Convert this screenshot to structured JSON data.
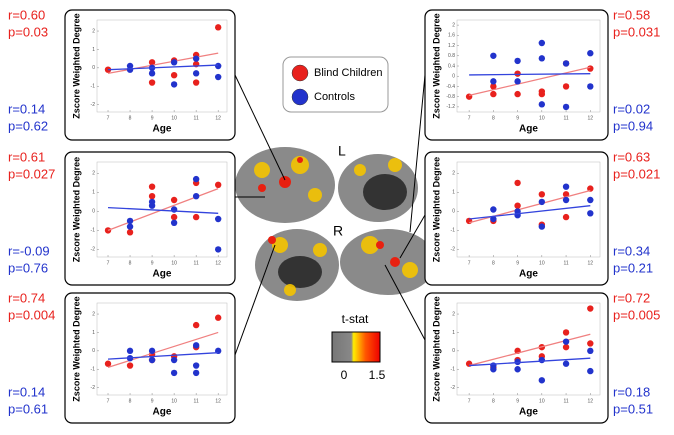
{
  "legend": [
    {
      "name": "Blind Children",
      "color": "#e8211d"
    },
    {
      "name": "Controls",
      "color": "#2233cc"
    }
  ],
  "brain_labels": [
    "L",
    "R"
  ],
  "colorbar": {
    "label": "t-stat",
    "min": 0,
    "max": 1.5
  },
  "chart_data": [
    {
      "type": "scatter",
      "ylabel": "Zscore Weighted Degree",
      "xlabel": "Age",
      "xlim": [
        6.5,
        12.4
      ],
      "xticks": [
        7,
        8,
        9,
        10,
        11,
        12
      ],
      "ylim": [
        -2.4,
        2.6
      ],
      "yticks": [
        -2,
        -1,
        0,
        1,
        2
      ],
      "x_fit": [
        7,
        12
      ],
      "series": [
        {
          "x": [
            7,
            9,
            9,
            10,
            10,
            11,
            11,
            11,
            12
          ],
          "values": [
            -0.1,
            0.3,
            -0.8,
            -0.4,
            0.4,
            0.7,
            0.2,
            -0.8,
            2.2
          ],
          "fit": [
            -0.3,
            0.8
          ],
          "r": "r=0.60",
          "p": "p=0.03"
        },
        {
          "x": [
            8,
            8,
            9,
            9,
            10,
            10,
            11,
            11,
            12,
            12
          ],
          "values": [
            0.1,
            -0.1,
            -0.3,
            0,
            0.3,
            -0.9,
            0.5,
            -0.3,
            0.1,
            -0.5
          ],
          "fit": [
            -0.1,
            0.15
          ],
          "r": "r=0.14",
          "p": "p=0.62"
        }
      ]
    },
    {
      "type": "scatter",
      "ylabel": "Zscore Weighted Degree",
      "xlabel": "Age",
      "xlim": [
        6.5,
        12.4
      ],
      "xticks": [
        7,
        8,
        9,
        10,
        11,
        12
      ],
      "ylim": [
        -2.4,
        2.6
      ],
      "yticks": [
        -2,
        -1,
        0,
        1,
        2
      ],
      "x_fit": [
        7,
        12
      ],
      "series": [
        {
          "x": [
            7,
            8,
            9,
            9,
            10,
            10,
            11,
            11,
            12
          ],
          "values": [
            -1,
            -1.1,
            1.3,
            0.8,
            -0.3,
            0.6,
            1.5,
            -0.3,
            1.4
          ],
          "fit": [
            -1.0,
            1.2
          ],
          "r": "r=0.61",
          "p": "p=0.027"
        },
        {
          "x": [
            8,
            8,
            9,
            9,
            10,
            10,
            11,
            11,
            12,
            12
          ],
          "values": [
            -0.5,
            -0.8,
            0.3,
            0.5,
            -0.6,
            0.1,
            1.7,
            0.8,
            -0.4,
            -2
          ],
          "fit": [
            0.2,
            -0.1
          ],
          "r": "r=-0.09",
          "p": "p=0.76"
        }
      ]
    },
    {
      "type": "scatter",
      "ylabel": "Zscore Weighted Degree",
      "xlabel": "Age",
      "xlim": [
        6.5,
        12.4
      ],
      "xticks": [
        7,
        8,
        9,
        10,
        11,
        12
      ],
      "ylim": [
        -2.4,
        2.6
      ],
      "yticks": [
        -2,
        -1,
        0,
        1,
        2
      ],
      "x_fit": [
        7,
        12
      ],
      "series": [
        {
          "x": [
            7,
            8,
            9,
            9,
            10,
            11,
            11,
            12
          ],
          "values": [
            -0.7,
            -0.8,
            -0.2,
            -0.5,
            -0.3,
            1.4,
            0.2,
            1.8
          ],
          "fit": [
            -0.9,
            1.0
          ],
          "r": "r=0.74",
          "p": "p=0.004"
        },
        {
          "x": [
            8,
            8,
            9,
            9,
            10,
            10,
            11,
            11,
            11,
            12
          ],
          "values": [
            0,
            -0.4,
            -0.5,
            0,
            -0.5,
            -1.2,
            0.3,
            -0.8,
            -1.2,
            0
          ],
          "fit": [
            -0.45,
            -0.1
          ],
          "r": "r=0.14",
          "p": "p=0.61"
        }
      ]
    },
    {
      "type": "scatter",
      "ylabel": "Zscore Weighted Degree",
      "xlabel": "Age",
      "xlim": [
        6.5,
        12.4
      ],
      "xticks": [
        7,
        8,
        9,
        10,
        11,
        12
      ],
      "ylim": [
        -1.4,
        2.2
      ],
      "yticks": [
        -1.2,
        -0.8,
        -0.4,
        0,
        0.4,
        0.8,
        1.2,
        1.6,
        2
      ],
      "x_fit": [
        7,
        12
      ],
      "series": [
        {
          "x": [
            7,
            8,
            8,
            9,
            9,
            10,
            10,
            11,
            11,
            12
          ],
          "values": [
            -0.8,
            -0.7,
            -0.4,
            -0.7,
            0.1,
            -0.7,
            -0.6,
            -0.4,
            0.5,
            0.3
          ],
          "fit": [
            -0.75,
            0.35
          ],
          "r": "r=0.58",
          "p": "p=0.031"
        },
        {
          "x": [
            8,
            8,
            9,
            9,
            10,
            10,
            10,
            11,
            11,
            12,
            12
          ],
          "values": [
            0.8,
            -0.2,
            0.6,
            -0.2,
            1.3,
            0.7,
            -1.1,
            0.5,
            -1.2,
            0.9,
            -0.4
          ],
          "fit": [
            0.05,
            0.1
          ],
          "r": "r=0.02",
          "p": "p=0.94"
        }
      ]
    },
    {
      "type": "scatter",
      "ylabel": "Zscore Weighted Degree",
      "xlabel": "Age",
      "xlim": [
        6.5,
        12.4
      ],
      "xticks": [
        7,
        8,
        9,
        10,
        11,
        12
      ],
      "ylim": [
        -2.4,
        2.6
      ],
      "yticks": [
        -2,
        -1,
        0,
        1,
        2
      ],
      "x_fit": [
        7,
        12
      ],
      "series": [
        {
          "x": [
            7,
            8,
            9,
            9,
            10,
            10,
            11,
            11,
            12
          ],
          "values": [
            -0.5,
            -0.5,
            1.5,
            0.3,
            0.9,
            -0.7,
            0.9,
            -0.3,
            1.2
          ],
          "fit": [
            -0.6,
            1.1
          ],
          "r": "r=0.63",
          "p": "p=0.021"
        },
        {
          "x": [
            8,
            8,
            9,
            9,
            10,
            10,
            11,
            11,
            12,
            12
          ],
          "values": [
            0.1,
            -0.4,
            -0.2,
            0,
            0.5,
            -0.8,
            1.3,
            0.6,
            0.6,
            -0.1
          ],
          "fit": [
            -0.4,
            0.3
          ],
          "r": "r=0.34",
          "p": "p=0.21"
        }
      ]
    },
    {
      "type": "scatter",
      "ylabel": "Zscore Weighted Degree",
      "xlabel": "Age",
      "xlim": [
        6.5,
        12.4
      ],
      "xticks": [
        7,
        8,
        9,
        10,
        11,
        12
      ],
      "ylim": [
        -2.4,
        2.6
      ],
      "yticks": [
        -2,
        -1,
        0,
        1,
        2
      ],
      "x_fit": [
        7,
        12
      ],
      "series": [
        {
          "x": [
            7,
            8,
            9,
            9,
            10,
            10,
            11,
            11,
            12,
            12
          ],
          "values": [
            -0.7,
            -0.9,
            0,
            -0.5,
            0.2,
            -0.3,
            1.0,
            0.2,
            2.3,
            0.4
          ],
          "fit": [
            -0.8,
            0.9
          ],
          "r": "r=0.72",
          "p": "p=0.005"
        },
        {
          "x": [
            8,
            8,
            9,
            9,
            10,
            10,
            11,
            11,
            12,
            12
          ],
          "values": [
            -0.8,
            -1.0,
            -0.6,
            -1.0,
            -0.5,
            -1.6,
            0.5,
            -0.7,
            -1.1,
            0
          ],
          "fit": [
            -0.8,
            -0.4
          ],
          "r": "r=0.18",
          "p": "p=0.51"
        }
      ]
    }
  ]
}
